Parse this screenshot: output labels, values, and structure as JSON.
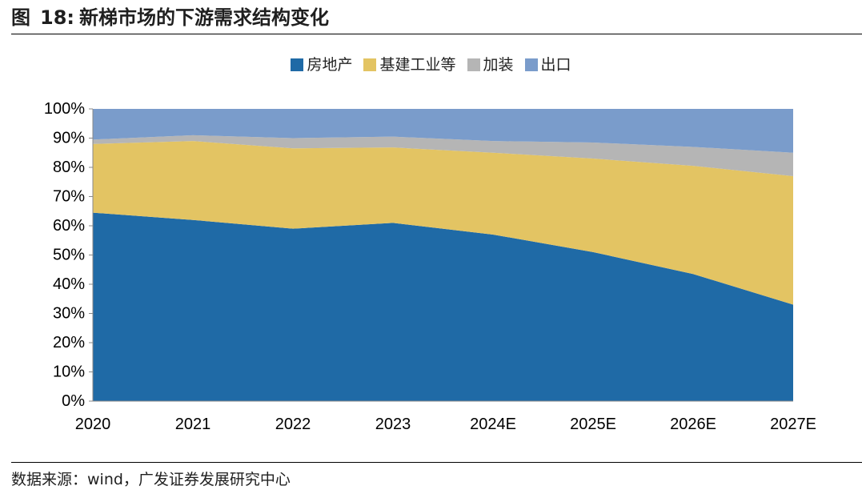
{
  "figure": {
    "label": "图",
    "number": "18:",
    "title": "新梯市场的下游需求结构变化"
  },
  "source": "数据来源：wind，广发证券发展研究中心",
  "colors": {
    "房地产": "#1F6AA6",
    "基建工业等": "#E3C463",
    "加装": "#B5B5B5",
    "出口": "#7A9CCB",
    "axis": "#888888"
  },
  "chart_data": {
    "type": "area",
    "stacked": "percent",
    "categories": [
      "2020",
      "2021",
      "2022",
      "2023",
      "2024E",
      "2025E",
      "2026E",
      "2027E"
    ],
    "series": [
      {
        "name": "房地产",
        "values": [
          64.5,
          62,
          59,
          61,
          57,
          51,
          43.5,
          33
        ]
      },
      {
        "name": "基建工业等",
        "values": [
          23.5,
          27,
          27.5,
          25.8,
          28,
          32,
          37,
          44
        ]
      },
      {
        "name": "加装",
        "values": [
          1.5,
          2,
          3.5,
          3.7,
          4,
          5.5,
          6.5,
          8
        ]
      },
      {
        "name": "出口",
        "values": [
          10.5,
          9,
          10,
          9.5,
          11,
          11.5,
          13,
          15
        ]
      }
    ],
    "yticks": [
      "0%",
      "10%",
      "20%",
      "30%",
      "40%",
      "50%",
      "60%",
      "70%",
      "80%",
      "90%",
      "100%"
    ],
    "ylim": [
      0,
      100
    ],
    "legend_position": "top-center",
    "grid": false
  }
}
